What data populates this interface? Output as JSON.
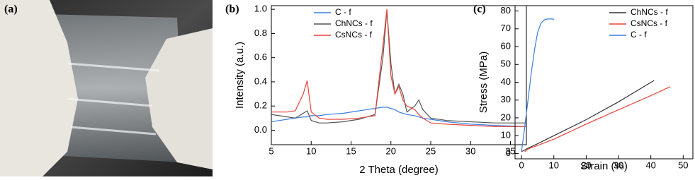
{
  "panel_labels": [
    "(a)",
    "(b)",
    "(c)"
  ],
  "chart_data": [
    {
      "type": "line",
      "xlabel": "2 Theta (degree)",
      "ylabel": "Intensity (a.u.)",
      "xlim": [
        5,
        37
      ],
      "xticks": [
        5,
        10,
        15,
        20,
        25,
        30,
        35
      ],
      "ylim": [
        -0.12,
        1.03
      ],
      "yticks": [
        {
          "value": 0,
          "label": "0.0"
        },
        {
          "value": 0.2,
          "label": "0.2"
        },
        {
          "value": 0.4,
          "label": "0.4"
        },
        {
          "value": 0.6,
          "label": "0.6"
        },
        {
          "value": 0.8,
          "label": "0.8"
        },
        {
          "value": 1,
          "label": "1.0"
        }
      ],
      "legend": "upper center",
      "x": [
        5,
        6,
        7,
        8,
        9,
        9.5,
        10,
        11,
        12,
        14,
        16,
        18,
        19,
        19.5,
        20,
        20.5,
        21,
        21.5,
        22,
        23,
        23.5,
        24,
        25,
        27,
        30,
        33,
        37
      ],
      "series": [
        {
          "name": "C - f",
          "color": "#3b7de0",
          "values": [
            0.07,
            0.08,
            0.09,
            0.1,
            0.11,
            0.11,
            0.12,
            0.12,
            0.13,
            0.14,
            0.16,
            0.18,
            0.19,
            0.19,
            0.18,
            0.17,
            0.15,
            0.14,
            0.13,
            0.12,
            0.11,
            0.1,
            0.09,
            0.07,
            0.05,
            0.04,
            0.03
          ]
        },
        {
          "name": "ChNCs - f",
          "color": "#555555",
          "values": [
            0.13,
            0.12,
            0.11,
            0.1,
            0.14,
            0.16,
            0.08,
            0.06,
            0.06,
            0.07,
            0.09,
            0.13,
            0.6,
            0.99,
            0.55,
            0.3,
            0.38,
            0.3,
            0.15,
            0.2,
            0.25,
            0.17,
            0.1,
            0.08,
            0.07,
            0.06,
            0.06
          ]
        },
        {
          "name": "CsNCs - f",
          "color": "#e8433a",
          "values": [
            0.15,
            0.15,
            0.15,
            0.16,
            0.3,
            0.41,
            0.15,
            0.1,
            0.09,
            0.09,
            0.1,
            0.12,
            0.7,
            1.0,
            0.45,
            0.3,
            0.36,
            0.25,
            0.2,
            0.17,
            0.13,
            0.1,
            0.06,
            0.05,
            0.04,
            0.03,
            0.03
          ]
        }
      ]
    },
    {
      "type": "line",
      "xlabel": "Strain (%)",
      "ylabel": "Stress (MPa)",
      "xlim": [
        -2,
        53
      ],
      "xticks": [
        0,
        10,
        20,
        30,
        40,
        50
      ],
      "ylim": [
        -3,
        83
      ],
      "yticks": [
        0,
        10,
        20,
        30,
        40,
        50,
        60,
        70,
        80
      ],
      "legend": "upper right",
      "series": [
        {
          "name": "ChNCs - f",
          "color": "#333333",
          "x": [
            0,
            1,
            2,
            5,
            10,
            20,
            30,
            41
          ],
          "values": [
            1,
            2,
            3,
            5.5,
            10,
            19,
            29,
            41
          ]
        },
        {
          "name": "CsNCs - f",
          "color": "#e8433a",
          "x": [
            1,
            2,
            5,
            10,
            20,
            30,
            40,
            46
          ],
          "values": [
            1,
            2.5,
            4.5,
            8,
            16.5,
            24.5,
            32.5,
            37.5
          ]
        },
        {
          "name": "C - f",
          "color": "#3b7de0",
          "x": [
            0,
            1,
            2,
            3,
            4,
            5,
            6,
            7,
            8,
            9.8,
            10
          ],
          "values": [
            1,
            15,
            30,
            45,
            58,
            68,
            73,
            75,
            75.5,
            75.5,
            75
          ]
        }
      ]
    }
  ]
}
